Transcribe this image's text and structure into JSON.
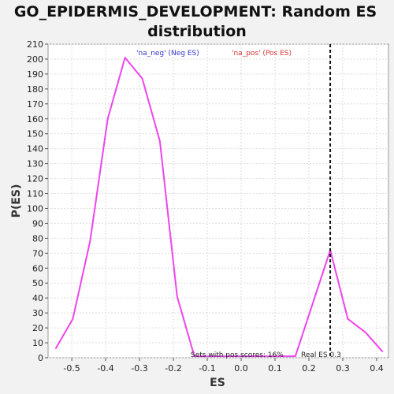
{
  "chart_data": {
    "type": "line",
    "title_lines": [
      "GO_EPIDERMIS_DEVELOPMENT: Random ES",
      "distribution"
    ],
    "xlabel": "ES",
    "ylabel": "P(ES)",
    "xlim": [
      -0.57,
      0.435
    ],
    "ylim": [
      0,
      210
    ],
    "x_ticks": [
      -0.5,
      -0.4,
      -0.3,
      -0.2,
      -0.1,
      0.0,
      0.1,
      0.2,
      0.3,
      0.4
    ],
    "x_tick_labels": [
      "-0.5",
      "-0.4",
      "-0.3",
      "-0.2",
      "-0.1",
      "0.0",
      "0.1",
      "0.2",
      "0.3",
      "0.4"
    ],
    "y_ticks": [
      0,
      10,
      20,
      30,
      40,
      50,
      60,
      70,
      80,
      90,
      100,
      110,
      120,
      130,
      140,
      150,
      160,
      170,
      180,
      190,
      200,
      210
    ],
    "y_tick_labels": [
      "0",
      "10",
      "20",
      "30",
      "40",
      "50",
      "60",
      "70",
      "80",
      "90",
      "100",
      "110",
      "120",
      "130",
      "140",
      "150",
      "160",
      "170",
      "180",
      "190",
      "200",
      "210"
    ],
    "grid": true,
    "legend": [
      {
        "label": "'na_neg' (Neg ES)",
        "color": "#3333cc"
      },
      {
        "label": "'na_pos' (Pos ES)",
        "color": "#dd3333"
      }
    ],
    "series": [
      {
        "color": "#ee44ee",
        "x": [
          -0.548,
          -0.497,
          -0.446,
          -0.394,
          -0.343,
          -0.292,
          -0.24,
          -0.189,
          -0.138,
          0.16,
          0.263,
          0.315,
          0.367,
          0.418
        ],
        "y": [
          6,
          26,
          78,
          160,
          201,
          187,
          145,
          41,
          1,
          1,
          72,
          26,
          17,
          4
        ]
      }
    ],
    "real_es": {
      "x": 0.263,
      "color": "#111111"
    },
    "annotations": {
      "pos_scores": "Sets with pos scores: 16%",
      "real_es": "Real ES 0.3"
    }
  }
}
